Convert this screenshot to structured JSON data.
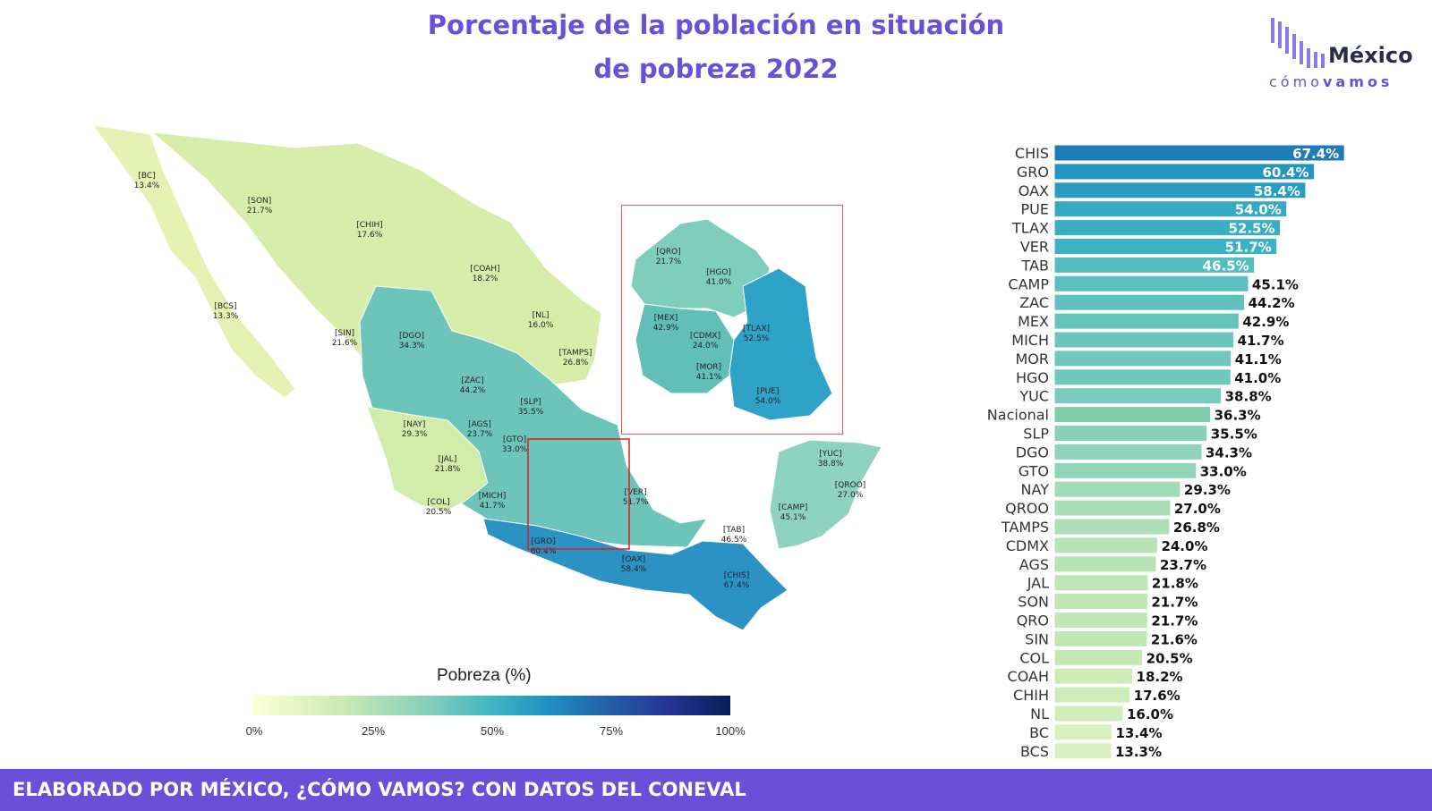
{
  "header": {
    "title_line1": "Porcentaje de la población en situación",
    "title_line2": "de pobreza 2022"
  },
  "logo": {
    "word1": "México",
    "word2_light": "cómo",
    "word2_bold": "vamos"
  },
  "legend": {
    "title": "Pobreza (%)",
    "ticks": [
      "0%",
      "25%",
      "50%",
      "75%",
      "100%"
    ]
  },
  "footer": {
    "text": "ELABORADO POR MÉXICO, ¿CÓMO VAMOS? CON DATOS DEL CONEVAL"
  },
  "colors": {
    "accent": "#6a4fd8",
    "inset_border": "#e05a5a",
    "nacional_bar": "#7fcdaa"
  },
  "chart_data": [
    {
      "type": "bar",
      "orientation": "horizontal",
      "categories": [
        "CHIS",
        "GRO",
        "OAX",
        "PUE",
        "TLAX",
        "VER",
        "TAB",
        "CAMP",
        "ZAC",
        "MEX",
        "MICH",
        "MOR",
        "HGO",
        "YUC",
        "Nacional",
        "SLP",
        "DGO",
        "GTO",
        "NAY",
        "QROO",
        "TAMPS",
        "CDMX",
        "AGS",
        "JAL",
        "SON",
        "QRO",
        "SIN",
        "COL",
        "COAH",
        "CHIH",
        "NL",
        "BC",
        "BCS"
      ],
      "values": [
        67.4,
        60.4,
        58.4,
        54.0,
        52.5,
        51.7,
        46.5,
        45.1,
        44.2,
        42.9,
        41.7,
        41.1,
        41.0,
        38.8,
        36.3,
        35.5,
        34.3,
        33.0,
        29.3,
        27.0,
        26.8,
        24.0,
        23.7,
        21.8,
        21.7,
        21.7,
        21.6,
        20.5,
        18.2,
        17.6,
        16.0,
        13.4,
        13.3
      ],
      "data_labels": [
        "67.4%",
        "60.4%",
        "58.4%",
        "54.0%",
        "52.5%",
        "51.7%",
        "46.5%",
        "45.1%",
        "44.2%",
        "42.9%",
        "41.7%",
        "41.1%",
        "41.0%",
        "38.8%",
        "36.3%",
        "35.5%",
        "34.3%",
        "33.0%",
        "29.3%",
        "27.0%",
        "26.8%",
        "24.0%",
        "23.7%",
        "21.8%",
        "21.7%",
        "21.7%",
        "21.6%",
        "20.5%",
        "18.2%",
        "17.6%",
        "16.0%",
        "13.4%",
        "13.3%"
      ],
      "xlim": [
        0,
        100
      ]
    },
    {
      "type": "map",
      "regions": [
        {
          "name": "BC",
          "label": "[BC]",
          "value": 13.4,
          "value_label": "13.4%"
        },
        {
          "name": "BCS",
          "label": "[BCS]",
          "value": 13.3,
          "value_label": "13.3%"
        },
        {
          "name": "SON",
          "label": "[SON]",
          "value": 21.7,
          "value_label": "21.7%"
        },
        {
          "name": "CHIH",
          "label": "[CHIH]",
          "value": 17.6,
          "value_label": "17.6%"
        },
        {
          "name": "COAH",
          "label": "[COAH]",
          "value": 18.2,
          "value_label": "18.2%"
        },
        {
          "name": "NL",
          "label": "[NL]",
          "value": 16.0,
          "value_label": "16.0%"
        },
        {
          "name": "TAMPS",
          "label": "[TAMPS]",
          "value": 26.8,
          "value_label": "26.8%"
        },
        {
          "name": "SIN",
          "label": "[SIN]",
          "value": 21.6,
          "value_label": "21.6%"
        },
        {
          "name": "DGO",
          "label": "[DGO]",
          "value": 34.3,
          "value_label": "34.3%"
        },
        {
          "name": "ZAC",
          "label": "[ZAC]",
          "value": 44.2,
          "value_label": "44.2%"
        },
        {
          "name": "SLP",
          "label": "[SLP]",
          "value": 35.5,
          "value_label": "35.5%"
        },
        {
          "name": "AGS",
          "label": "[AGS]",
          "value": 23.7,
          "value_label": "23.7%"
        },
        {
          "name": "NAY",
          "label": "[NAY]",
          "value": 29.3,
          "value_label": "29.3%"
        },
        {
          "name": "GTO",
          "label": "[GTO]",
          "value": 33.0,
          "value_label": "33.0%"
        },
        {
          "name": "JAL",
          "label": "[JAL]",
          "value": 21.8,
          "value_label": "21.8%"
        },
        {
          "name": "COL",
          "label": "[COL]",
          "value": 20.5,
          "value_label": "20.5%"
        },
        {
          "name": "MICH",
          "label": "[MICH]",
          "value": 41.7,
          "value_label": "41.7%"
        },
        {
          "name": "VER",
          "label": "[VER]",
          "value": 51.7,
          "value_label": "51.7%"
        },
        {
          "name": "GRO",
          "label": "[GRO]",
          "value": 60.4,
          "value_label": "60.4%"
        },
        {
          "name": "OAX",
          "label": "[OAX]",
          "value": 58.4,
          "value_label": "58.4%"
        },
        {
          "name": "TAB",
          "label": "[TAB]",
          "value": 46.5,
          "value_label": "46.5%"
        },
        {
          "name": "CHIS",
          "label": "[CHIS]",
          "value": 67.4,
          "value_label": "67.4%"
        },
        {
          "name": "CAMP",
          "label": "[CAMP]",
          "value": 45.1,
          "value_label": "45.1%"
        },
        {
          "name": "YUC",
          "label": "[YUC]",
          "value": 38.8,
          "value_label": "38.8%"
        },
        {
          "name": "QROO",
          "label": "[QROO]",
          "value": 27.0,
          "value_label": "27.0%"
        }
      ],
      "inset_regions": [
        {
          "name": "QRO",
          "label": "[QRO]",
          "value": 21.7,
          "value_label": "21.7%"
        },
        {
          "name": "HGO",
          "label": "[HGO]",
          "value": 41.0,
          "value_label": "41.0%"
        },
        {
          "name": "MEX",
          "label": "[MEX]",
          "value": 42.9,
          "value_label": "42.9%"
        },
        {
          "name": "CDMX",
          "label": "[CDMX]",
          "value": 24.0,
          "value_label": "24.0%"
        },
        {
          "name": "TLAX",
          "label": "[TLAX]",
          "value": 52.5,
          "value_label": "52.5%"
        },
        {
          "name": "MOR",
          "label": "[MOR]",
          "value": 41.1,
          "value_label": "41.1%"
        },
        {
          "name": "PUE",
          "label": "[PUE]",
          "value": 54.0,
          "value_label": "54.0%"
        }
      ],
      "scale": [
        0,
        100
      ]
    }
  ]
}
